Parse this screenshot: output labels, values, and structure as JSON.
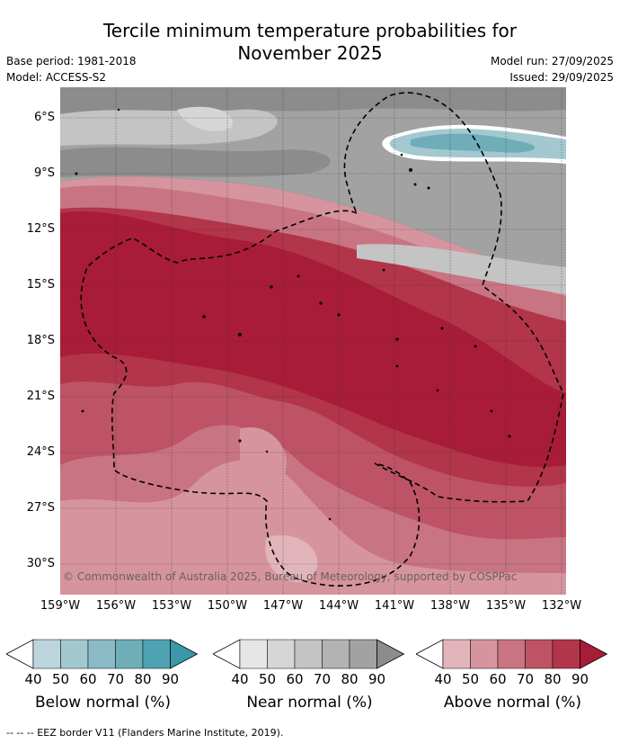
{
  "title_line1": "Tercile minimum temperature probabilities for",
  "title_line2": "November 2025",
  "meta": {
    "base_period": "Base period: 1981-2018",
    "model": "Model: ACCESS-S2",
    "model_run": "Model run: 27/09/2025",
    "issued": "Issued: 29/09/2025"
  },
  "map": {
    "lat_labels": [
      "6°S",
      "9°S",
      "12°S",
      "15°S",
      "18°S",
      "21°S",
      "24°S",
      "27°S",
      "30°S"
    ],
    "lon_labels": [
      "159°W",
      "156°W",
      "153°W",
      "150°W",
      "147°W",
      "144°W",
      "141°W",
      "138°W",
      "135°W",
      "132°W"
    ],
    "copyright": "© Commonwealth of Australia 2025, Bureau of Meteorology, supported by COSPPac"
  },
  "colorbars": [
    {
      "label": "Below normal (%)",
      "ticks": [
        "40",
        "50",
        "60",
        "70",
        "80",
        "90"
      ],
      "colors": [
        "#ffffff",
        "#bcd5dc",
        "#a3c8d0",
        "#89bac5",
        "#6fadb9",
        "#4ea2b2",
        "#3a98a8"
      ]
    },
    {
      "label": "Near normal (%)",
      "ticks": [
        "40",
        "50",
        "60",
        "70",
        "80",
        "90"
      ],
      "colors": [
        "#ffffff",
        "#e6e6e6",
        "#d6d6d6",
        "#c4c4c4",
        "#b3b3b3",
        "#a2a2a2",
        "#8c8c8c"
      ]
    },
    {
      "label": "Above normal (%)",
      "ticks": [
        "40",
        "50",
        "60",
        "70",
        "80",
        "90"
      ],
      "colors": [
        "#ffffff",
        "#e2b4bb",
        "#d6959e",
        "#c97482",
        "#bd5364",
        "#b2354a",
        "#a81c38"
      ]
    }
  ],
  "footer": "--  --  -- EEZ border V11 (Flanders Marine Institute, 2019)."
}
